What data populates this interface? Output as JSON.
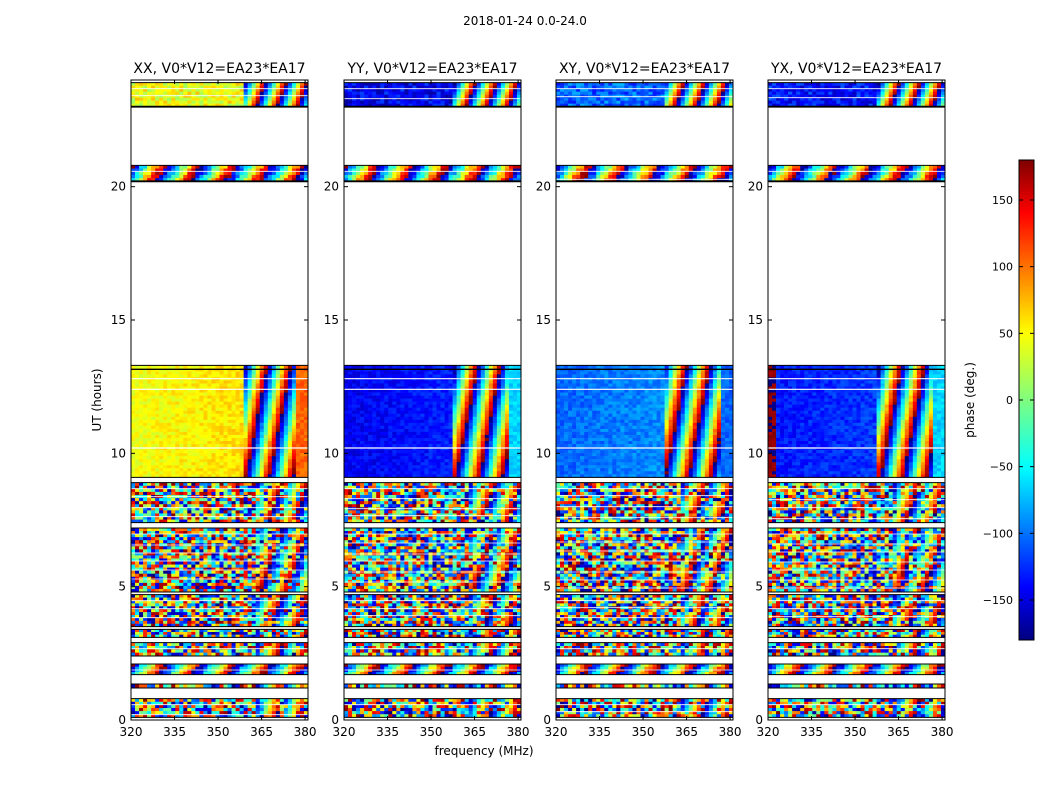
{
  "figure": {
    "suptitle": "2018-01-24 0.0-24.0"
  },
  "chart_data": {
    "type": "heatmap",
    "title": "2018-01-24 0.0-24.0",
    "xlabel": "frequency (MHz)",
    "ylabel": "UT (hours)",
    "xlim": [
      320,
      381
    ],
    "ylim": [
      0,
      24
    ],
    "x_ticks": [
      "320",
      "335",
      "350",
      "365",
      "380"
    ],
    "y_ticks": [
      "0",
      "5",
      "10",
      "15",
      "20"
    ],
    "panels": [
      {
        "title": "XX, V0*V12=EA23*EA17",
        "base_phase": 40,
        "tint_end_mhz": 359,
        "left_strip_phase": 40,
        "right_strip_phase": 100
      },
      {
        "title": "YY, V0*V12=EA23*EA17",
        "base_phase": -140,
        "tint_end_mhz": 358,
        "left_strip_phase": -140,
        "right_strip_phase": -60
      },
      {
        "title": "XY, V0*V12=EA23*EA17",
        "base_phase": -100,
        "tint_end_mhz": 357,
        "left_strip_phase": -100,
        "right_strip_phase": -100
      },
      {
        "title": "YX, V0*V12=EA23*EA17",
        "base_phase": -130,
        "tint_end_mhz": 358,
        "left_strip_phase": 175,
        "right_strip_phase": -60
      }
    ],
    "coherent_block_ut": [
      9.1,
      13.3
    ],
    "data_bands_ut": [
      {
        "start": 0.1,
        "end": 0.8,
        "kind": "noise"
      },
      {
        "start": 1.2,
        "end": 1.35,
        "kind": "noise"
      },
      {
        "start": 1.7,
        "end": 2.1,
        "kind": "fringe"
      },
      {
        "start": 2.4,
        "end": 2.9,
        "kind": "noise"
      },
      {
        "start": 3.1,
        "end": 3.4,
        "kind": "noise"
      },
      {
        "start": 3.5,
        "end": 4.7,
        "kind": "noise"
      },
      {
        "start": 4.8,
        "end": 7.2,
        "kind": "noise"
      },
      {
        "start": 7.4,
        "end": 8.9,
        "kind": "noise"
      },
      {
        "start": 9.1,
        "end": 13.3,
        "kind": "coherent"
      },
      {
        "start": 20.2,
        "end": 20.8,
        "kind": "fringe"
      },
      {
        "start": 23.0,
        "end": 23.9,
        "kind": "tinted"
      }
    ],
    "colorbar": {
      "label": "phase (deg.)",
      "range": [
        -180,
        180
      ],
      "ticks": [
        "150",
        "100",
        "50",
        "0",
        "−50",
        "−100",
        "−150"
      ],
      "tick_values": [
        150,
        100,
        50,
        0,
        -50,
        -100,
        -150
      ],
      "colormap": "jet"
    }
  }
}
